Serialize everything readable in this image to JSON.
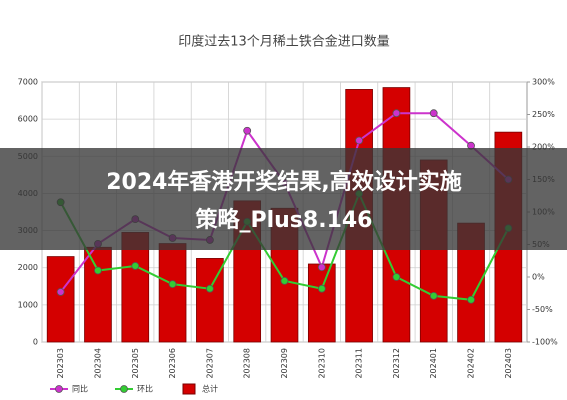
{
  "chart_data": {
    "type": "bar-line",
    "title": "印度过去13个月稀土铁合金进口数量",
    "categories": [
      "202303",
      "202304",
      "202305",
      "202306",
      "202307",
      "202308",
      "202309",
      "202310",
      "202311",
      "202312",
      "202401",
      "202402",
      "202403"
    ],
    "series": [
      {
        "name": "同比",
        "type": "line",
        "axis": "y2",
        "color": "#cc33cc",
        "values": [
          -23,
          51,
          89,
          60,
          57,
          225,
          145,
          15,
          210,
          252,
          252,
          202,
          150
        ]
      },
      {
        "name": "环比",
        "type": "line",
        "axis": "y2",
        "color": "#33cc33",
        "values": [
          115,
          10,
          17,
          -11,
          -18,
          85,
          -6,
          -18,
          128,
          0,
          -29,
          -35,
          75
        ]
      },
      {
        "name": "总计",
        "type": "bar",
        "color": "#d40000",
        "values": [
          2300,
          2550,
          2950,
          2650,
          2250,
          3800,
          3600,
          2100,
          6800,
          6850,
          4900,
          3200,
          5650
        ]
      }
    ],
    "ylim": [
      0,
      7000
    ],
    "yticks": [
      0,
      1000,
      2000,
      3000,
      4000,
      5000,
      6000,
      7000
    ],
    "y2lim": [
      -100,
      300
    ],
    "y2ticks": [
      {
        "value": -100,
        "label": "-100%"
      },
      {
        "value": -50,
        "label": "-50%"
      },
      {
        "value": 0,
        "label": "0%"
      },
      {
        "value": 50,
        "label": "50%"
      },
      {
        "value": 100,
        "label": "100%"
      },
      {
        "value": 150,
        "label": "150%"
      },
      {
        "value": 200,
        "label": "200%"
      },
      {
        "value": 250,
        "label": "250%"
      },
      {
        "value": 300,
        "label": "300%"
      }
    ],
    "grid": true
  },
  "overlay": {
    "lines": [
      "2024年香港开奖结果,高效设计实施",
      "策略_Plus8.146"
    ]
  }
}
